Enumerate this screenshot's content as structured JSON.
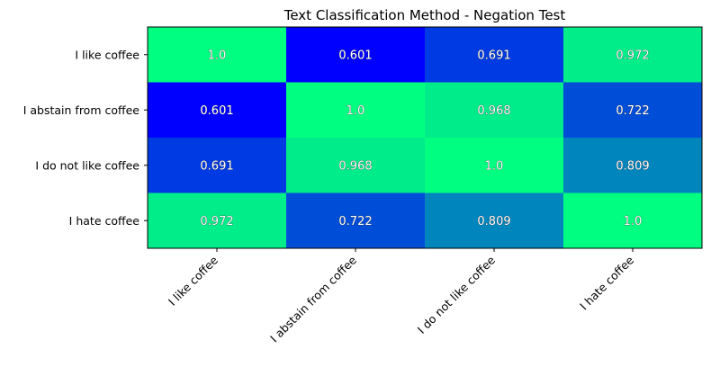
{
  "chart_data": {
    "type": "heatmap",
    "title": "Text Classification Method - Negation Test",
    "rows": [
      "I like coffee",
      "I abstain from coffee",
      "I do not like coffee",
      "I hate coffee"
    ],
    "columns": [
      "I like coffee",
      "I abstain from coffee",
      "I do not like coffee",
      "I hate coffee"
    ],
    "values": [
      [
        1.0,
        0.601,
        0.691,
        0.972
      ],
      [
        0.601,
        1.0,
        0.968,
        0.722
      ],
      [
        0.691,
        0.968,
        1.0,
        0.809
      ],
      [
        0.972,
        0.722,
        0.809,
        1.0
      ]
    ],
    "labels": [
      [
        "1.0",
        "0.601",
        "0.691",
        "0.972"
      ],
      [
        "0.601",
        "1.0",
        "0.968",
        "0.722"
      ],
      [
        "0.691",
        "0.968",
        "1.0",
        "0.809"
      ],
      [
        "0.972",
        "0.722",
        "0.809",
        "1.0"
      ]
    ],
    "colormap": "winter",
    "color_low": "#0000ff",
    "color_high": "#00ff80",
    "vmin": 0.601,
    "vmax": 1.0
  }
}
